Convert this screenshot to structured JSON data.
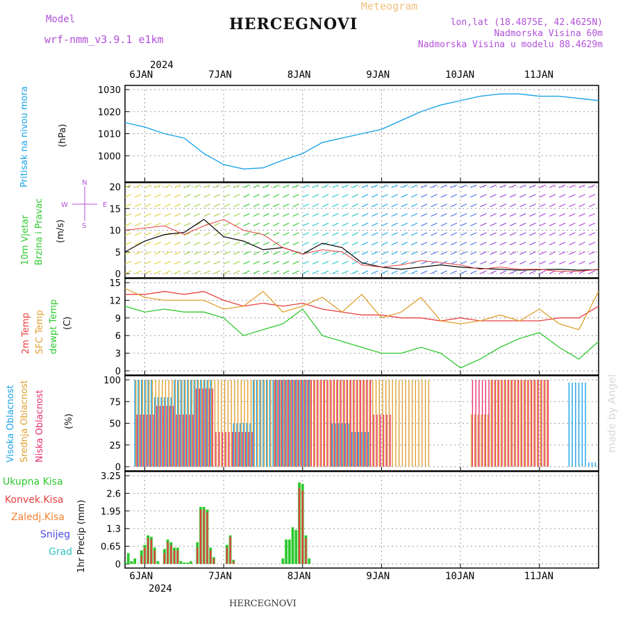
{
  "header": {
    "model_label": "Model",
    "model_name": "wrf-nmm_v3.9.1 e1km",
    "title": "HERCEGNOVI",
    "meteogram_label": "Meteogram",
    "lonlat": "lon,lat (18.4875E, 42.4625N)",
    "altitude": "Nadmorska Visina 60m",
    "model_altitude": "Nadmorska Visina u modelu 88.4629m"
  },
  "footer": {
    "station": "HERCEGNOVI",
    "credit": "made by Angel"
  },
  "colors": {
    "pressure": "#1ba3e8",
    "temp": "#e84040",
    "sfc_temp": "#e0a030",
    "dewpt": "#2ec82e",
    "cloud_high": "#1ba3e8",
    "cloud_mid": "#e0a030",
    "cloud_low": "#e83070",
    "rain_total": "#2ec82e",
    "rain_conv": "#e84040",
    "freezing": "#f08030",
    "snow": "#4a4ae0",
    "hail": "#30c0c0"
  },
  "time_axis": {
    "year": "2024",
    "days": [
      "6JAN",
      "7JAN",
      "8JAN",
      "9JAN",
      "10JAN",
      "11JAN"
    ],
    "start_hour_offset": -6,
    "end_hour_offset": 138
  },
  "panels": {
    "pressure": {
      "ylabel": "Pritisak na nivou mora",
      "unit": "(hPa)"
    },
    "wind": {
      "ylabel1": "10m Vjetar",
      "ylabel2": "Brzina i Pravac",
      "unit": "(m/s)",
      "compass": {
        "n": "N",
        "s": "S",
        "e": "E",
        "w": "W"
      }
    },
    "temp": {
      "ylabel_temp": "2m Temp",
      "ylabel_sfc": "SFC Temp",
      "ylabel_dew": "dewpt Temp",
      "unit": "(C)"
    },
    "cloud": {
      "ylabel_high": "Visoka Oblacnost",
      "ylabel_mid": "Srednja Oblacnost",
      "ylabel_low": "Niska Oblacnost",
      "unit": "(%)"
    },
    "precip": {
      "ylabel": "1hr Precip (mm)",
      "legend": [
        "Ukupna Kisa",
        "Konvek.Kisa",
        "Zaledj.Kisa",
        "Snijeg",
        "Grad"
      ]
    }
  },
  "chart_data": [
    {
      "type": "line",
      "title": "Pritisak na nivou mora",
      "ylabel": "(hPa)",
      "ylim": [
        990,
        1030
      ],
      "yticks": [
        1000,
        1010,
        1020,
        1030
      ],
      "grid": true,
      "x_hours": [
        -6,
        0,
        6,
        12,
        18,
        24,
        30,
        36,
        42,
        48,
        54,
        60,
        66,
        72,
        78,
        84,
        90,
        96,
        102,
        108,
        114,
        120,
        126,
        132,
        138
      ],
      "series": [
        {
          "values": [
            1015,
            1013,
            1010,
            1008,
            1001,
            996,
            994,
            994.5,
            998,
            1001,
            1006,
            1008,
            1010,
            1012,
            1016,
            1020,
            1023,
            1025,
            1027,
            1028,
            1028,
            1027,
            1027,
            1026,
            1025
          ]
        }
      ]
    },
    {
      "type": "line",
      "title": "10m Vjetar",
      "ylabel": "(m/s)",
      "ylim": [
        0,
        20
      ],
      "yticks": [
        0,
        5,
        10,
        15,
        20
      ],
      "grid": true,
      "x_hours": [
        -6,
        0,
        6,
        12,
        18,
        24,
        30,
        36,
        42,
        48,
        54,
        60,
        66,
        72,
        78,
        84,
        90,
        96,
        102,
        108,
        114,
        120,
        126,
        132,
        138
      ],
      "series": [
        {
          "values": [
            5,
            7.5,
            9,
            9.5,
            12.5,
            8.5,
            7.5,
            5.5,
            6,
            4.5,
            7,
            6,
            2.5,
            1.5,
            1,
            1.5,
            2,
            1.5,
            1.2,
            1,
            0.8,
            0.9,
            1,
            0.8,
            0.9
          ]
        },
        {
          "values": [
            10,
            10.5,
            11,
            9,
            11,
            12.5,
            10,
            9,
            6,
            4.5,
            5.5,
            5,
            2,
            1.5,
            2,
            3,
            2.5,
            2,
            1,
            1.5,
            1,
            1,
            0.5,
            0.5,
            1
          ]
        }
      ]
    },
    {
      "type": "line",
      "title": "2m Temp / SFC Temp / dewpt Temp",
      "ylabel": "(C)",
      "ylim": [
        0,
        15
      ],
      "yticks": [
        0,
        3,
        6,
        9,
        12,
        15
      ],
      "grid": true,
      "x_hours": [
        -6,
        0,
        6,
        12,
        18,
        24,
        30,
        36,
        42,
        48,
        54,
        60,
        66,
        72,
        78,
        84,
        90,
        96,
        102,
        108,
        114,
        120,
        126,
        132,
        138
      ],
      "series": [
        {
          "name": "2m Temp",
          "values": [
            13,
            13,
            13.5,
            13,
            13.5,
            12,
            11,
            11.5,
            11,
            11.5,
            10.5,
            10,
            9.5,
            9.5,
            9,
            9,
            8.5,
            9,
            8.5,
            8.5,
            8.5,
            8.5,
            9,
            9,
            11
          ]
        },
        {
          "name": "SFC Temp",
          "values": [
            14,
            12.5,
            12,
            12,
            12,
            10.5,
            11,
            13.5,
            10,
            11,
            12.5,
            10,
            13,
            9,
            10,
            12.5,
            8.5,
            8,
            8.5,
            9.5,
            8.5,
            10.5,
            8,
            7,
            13.5
          ]
        },
        {
          "name": "dewpt Temp",
          "values": [
            11,
            10,
            10.5,
            10,
            10,
            9,
            6,
            7,
            8,
            10.5,
            6,
            5,
            4,
            3,
            3,
            4,
            3,
            0.5,
            2,
            4,
            5.5,
            6.5,
            4,
            2,
            5
          ]
        }
      ]
    },
    {
      "type": "bar",
      "title": "Oblacnost",
      "ylabel": "(%)",
      "ylim": [
        0,
        100
      ],
      "yticks": [
        0,
        25,
        50,
        75,
        100
      ],
      "grid": true,
      "x_hours": [
        -6,
        0,
        6,
        12,
        18,
        24,
        30,
        36,
        42,
        48,
        54,
        60,
        66,
        72,
        78,
        84,
        90,
        96,
        102,
        108,
        114,
        120,
        126,
        132,
        138
      ],
      "series": [
        {
          "name": "Visoka Oblacnost",
          "values": [
            0,
            100,
            80,
            100,
            100,
            0,
            50,
            100,
            100,
            100,
            0,
            50,
            40,
            0,
            0,
            0,
            0,
            0,
            0,
            0,
            0,
            0,
            0,
            97,
            5
          ]
        },
        {
          "name": "Srednja Oblacnost",
          "values": [
            0,
            100,
            100,
            100,
            100,
            100,
            100,
            100,
            100,
            100,
            100,
            100,
            100,
            100,
            100,
            100,
            0,
            0,
            60,
            100,
            100,
            100,
            0,
            0,
            0
          ]
        },
        {
          "name": "Niska Oblacnost",
          "values": [
            0,
            60,
            70,
            60,
            90,
            40,
            40,
            0,
            100,
            100,
            100,
            100,
            100,
            60,
            0,
            0,
            0,
            0,
            100,
            100,
            100,
            100,
            0,
            0,
            0
          ]
        }
      ]
    },
    {
      "type": "bar",
      "title": "1hr Precip",
      "ylabel": "(mm)",
      "ylim": [
        0,
        3.25
      ],
      "yticks": [
        0,
        0.65,
        1.3,
        1.95,
        2.6,
        3.25
      ],
      "grid": true,
      "x_hours": [
        -6,
        -5,
        -4,
        -3,
        -2,
        -1,
        0,
        1,
        2,
        3,
        4,
        5,
        6,
        7,
        8,
        9,
        10,
        11,
        12,
        13,
        14,
        15,
        16,
        17,
        18,
        19,
        20,
        21,
        22,
        23,
        24,
        25,
        26,
        27,
        28,
        29,
        30,
        31,
        32,
        33,
        34,
        35,
        36,
        37,
        38,
        39,
        40,
        41,
        42,
        43,
        44,
        45,
        46,
        47,
        48,
        49,
        50,
        51,
        52,
        53,
        54
      ],
      "series": [
        {
          "name": "Ukupna Kisa",
          "values": [
            0.05,
            0.4,
            0.1,
            0.2,
            0,
            0.5,
            0.7,
            1.05,
            1.0,
            0.6,
            0.1,
            0,
            0.55,
            0.9,
            0.8,
            0.6,
            0.6,
            0.1,
            0.05,
            0.05,
            0.1,
            0,
            0.8,
            2.1,
            2.1,
            2.0,
            0.6,
            0.25,
            0,
            0,
            0,
            0.7,
            1.05,
            0.15,
            0,
            0,
            0,
            0,
            0,
            0,
            0,
            0,
            0,
            0,
            0,
            0,
            0,
            0,
            0.2,
            0.9,
            0.9,
            1.35,
            1.25,
            3.0,
            2.95,
            1.05,
            0.2,
            0,
            0,
            0,
            0
          ]
        },
        {
          "name": "Konvek.Kisa",
          "values": [
            0,
            0,
            0,
            0,
            0,
            0.3,
            0.6,
            0.95,
            0.9,
            0.5,
            0,
            0,
            0.4,
            0.8,
            0.7,
            0.5,
            0.5,
            0,
            0,
            0,
            0,
            0,
            0.6,
            2.0,
            2.0,
            1.9,
            0.5,
            0.2,
            0,
            0,
            0,
            0.6,
            1.0,
            0.1,
            0,
            0,
            0,
            0,
            0,
            0,
            0,
            0,
            0,
            0,
            0,
            0,
            0,
            0,
            0,
            0,
            0,
            0,
            0,
            2.8,
            2.7,
            0.95,
            0,
            0,
            0,
            0,
            0
          ]
        }
      ]
    }
  ]
}
